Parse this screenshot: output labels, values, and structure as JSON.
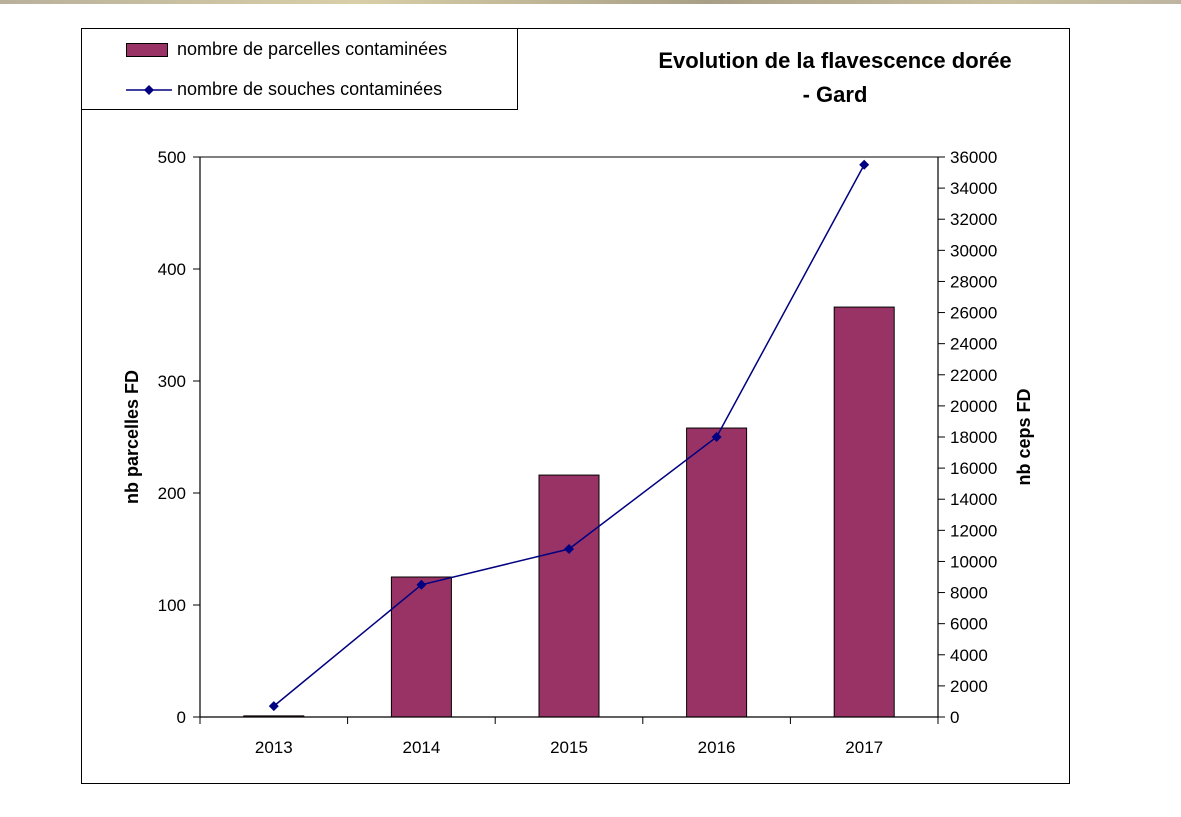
{
  "chart_data": {
    "type": "bar",
    "title_lines": [
      "Evolution de la flavescence dorée",
      "- Gard"
    ],
    "categories": [
      "2013",
      "2014",
      "2015",
      "2016",
      "2017"
    ],
    "series": [
      {
        "name": "nombre de parcelles contaminées",
        "type": "bar",
        "axis": "left",
        "color": "#993366",
        "values": [
          1,
          125,
          216,
          258,
          366
        ]
      },
      {
        "name": "nombre de souches contaminées",
        "type": "line",
        "axis": "right",
        "color": "#000080",
        "marker": "diamond",
        "values": [
          700,
          8500,
          10800,
          18000,
          35500
        ]
      }
    ],
    "y_left": {
      "label": "nb parcelles FD",
      "lim": [
        0,
        500
      ],
      "ticks": [
        0,
        100,
        200,
        300,
        400,
        500
      ]
    },
    "y_right": {
      "label": "nb ceps FD",
      "lim": [
        0,
        36000
      ],
      "ticks": [
        0,
        2000,
        4000,
        6000,
        8000,
        10000,
        12000,
        14000,
        16000,
        18000,
        20000,
        22000,
        24000,
        26000,
        28000,
        30000,
        32000,
        34000,
        36000
      ]
    },
    "grid": false,
    "legend_position": "top-left"
  }
}
